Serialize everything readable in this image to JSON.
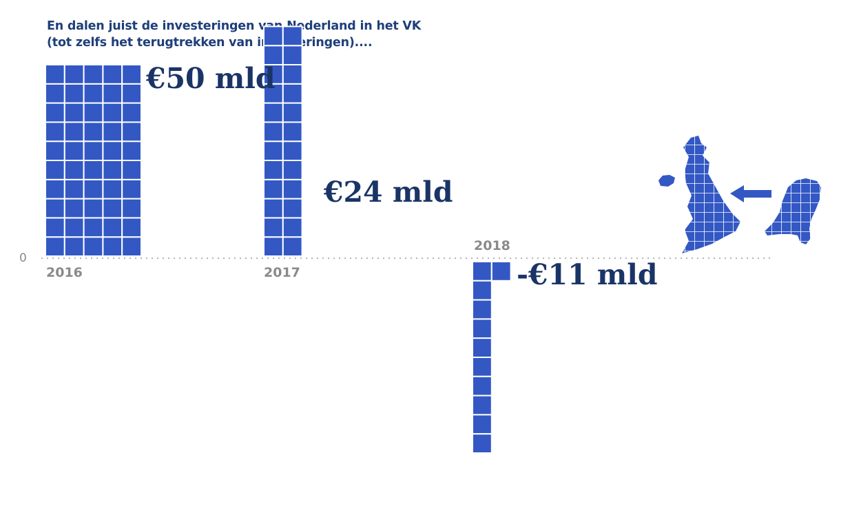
{
  "title": {
    "line1": "En dalen juist de investeringen van Nederland in het VK",
    "line2": "(tot zelfs het terugtrekken van investeringen)...."
  },
  "zero_label": "0",
  "colors": {
    "cell": "#3358c4",
    "value_text": "#1a3466",
    "muted": "#8a8a8a"
  },
  "icons": [
    "uk-map-icon",
    "arrow-left-icon",
    "netherlands-map-icon"
  ],
  "chart_data": {
    "type": "bar",
    "unit_per_cell": "€1 mld",
    "categories": [
      "2016",
      "2017",
      "2018"
    ],
    "values": [
      50,
      24,
      -11
    ],
    "value_labels": [
      "€50 mld",
      "€24 mld",
      "-€11 mld"
    ],
    "title": "En dalen juist de investeringen van Nederland in het VK (tot zelfs het terugtrekken van investeringen)....",
    "xlabel": "",
    "ylabel": "",
    "grid": false
  }
}
